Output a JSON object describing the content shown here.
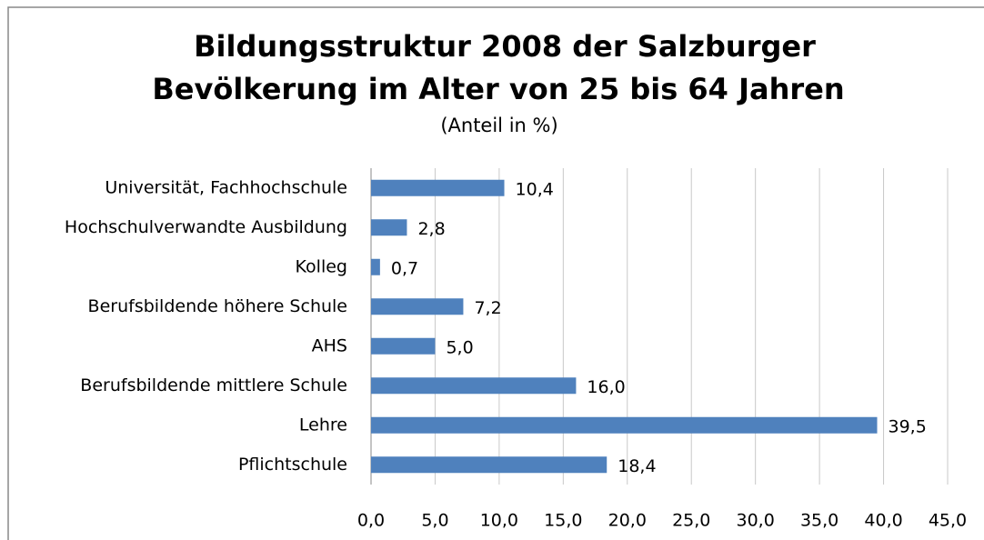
{
  "chart_data": {
    "type": "barh",
    "title_lines": [
      "Bildungsstruktur 2008 der Salzburger",
      "Bevölkerung im Alter von 25 bis 64 Jahren"
    ],
    "subtitle": "(Anteil in %)",
    "categories": [
      "Universität, Fachhochschule",
      "Hochschulverwandte Ausbildung",
      "Kolleg",
      "Berufsbildende höhere Schule",
      "AHS",
      "Berufsbildende mittlere Schule",
      "Lehre",
      "Pflichtschule"
    ],
    "values": [
      10.4,
      2.8,
      0.7,
      7.2,
      5.0,
      16.0,
      39.5,
      18.4
    ],
    "value_labels": [
      "10,4",
      "2,8",
      "0,7",
      "7,2",
      "5,0",
      "16,0",
      "39,5",
      "18,4"
    ],
    "color": "#4f81bd",
    "xlim": [
      0,
      45
    ],
    "xticks": [
      {
        "value": 0,
        "label": "0,0"
      },
      {
        "value": 5,
        "label": "5,0"
      },
      {
        "value": 10,
        "label": "10,0"
      },
      {
        "value": 15,
        "label": "15,0"
      },
      {
        "value": 20,
        "label": "20,0"
      },
      {
        "value": 25,
        "label": "25,0"
      },
      {
        "value": 30,
        "label": "30,0"
      },
      {
        "value": 35,
        "label": "35,0"
      },
      {
        "value": 40,
        "label": "40,0"
      },
      {
        "value": 45,
        "label": "45,0"
      }
    ],
    "grid": true
  }
}
